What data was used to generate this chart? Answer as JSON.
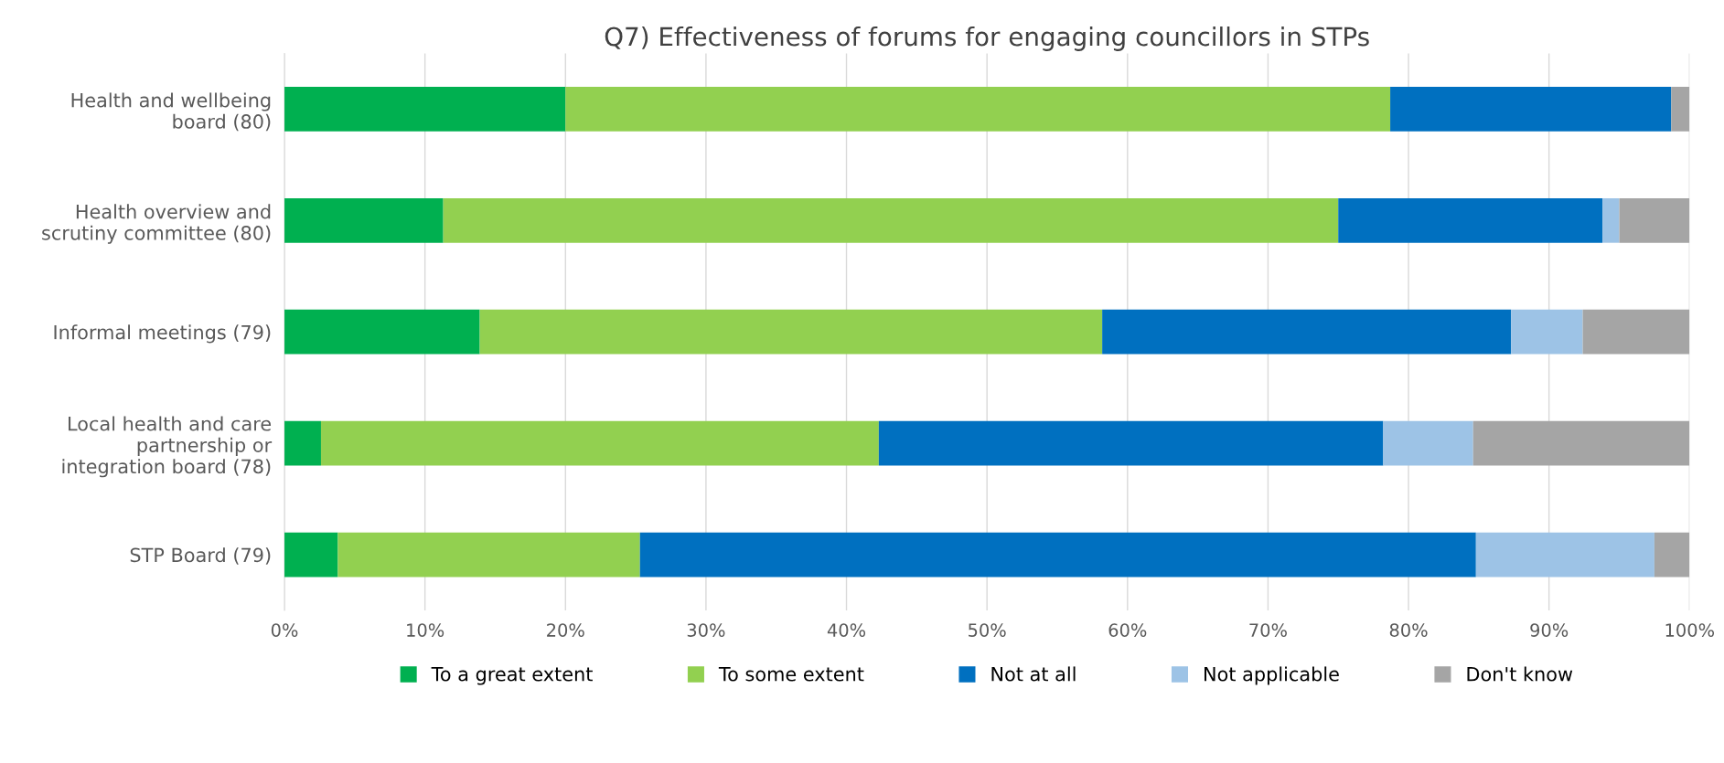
{
  "chart_data": {
    "type": "bar",
    "orientation": "horizontal",
    "stacked": true,
    "title": "Q7) Effectiveness of forums for engaging councillors in STPs",
    "categories": [
      "Health and wellbeing board (80)",
      "Health overview and scrutiny committee (80)",
      "Informal meetings (79)",
      "Local health and care partnership or integration board (78)",
      "STP Board (79)"
    ],
    "series": [
      {
        "name": "To a great extent",
        "color": "#00b050",
        "values": [
          20.0,
          11.3,
          13.9,
          2.6,
          3.8
        ]
      },
      {
        "name": "To some extent",
        "color": "#92d050",
        "values": [
          58.7,
          63.7,
          44.3,
          39.7,
          21.5
        ]
      },
      {
        "name": "Not at all",
        "color": "#0070c0",
        "values": [
          20.0,
          18.8,
          29.1,
          35.9,
          59.5
        ]
      },
      {
        "name": "Not applicable",
        "color": "#9dc3e6",
        "values": [
          0,
          1.2,
          5.1,
          6.4,
          12.7
        ]
      },
      {
        "name": "Don't know",
        "color": "#a5a5a5",
        "values": [
          1.3,
          5.0,
          7.6,
          15.4,
          2.5
        ]
      }
    ],
    "xlim": [
      0,
      100
    ],
    "xticks": [
      {
        "value": 0,
        "label": "0%"
      },
      {
        "value": 10,
        "label": "10%"
      },
      {
        "value": 20,
        "label": "20%"
      },
      {
        "value": 30,
        "label": "30%"
      },
      {
        "value": 40,
        "label": "40%"
      },
      {
        "value": 50,
        "label": "50%"
      },
      {
        "value": 60,
        "label": "60%"
      },
      {
        "value": 70,
        "label": "70%"
      },
      {
        "value": 80,
        "label": "80%"
      },
      {
        "value": 90,
        "label": "90%"
      },
      {
        "value": 100,
        "label": "100%"
      }
    ],
    "grid": "x",
    "legend": "bottom"
  }
}
